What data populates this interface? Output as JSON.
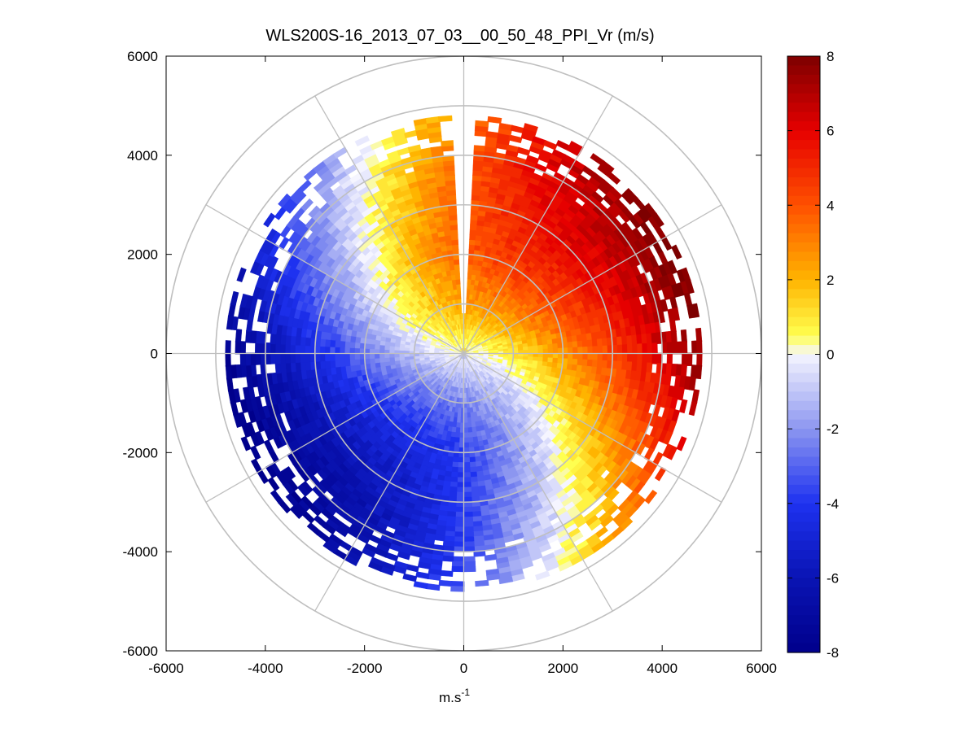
{
  "chart_data": {
    "type": "heatmap",
    "subtype": "polar-ppi",
    "title": "WLS200S-16_2013_07_03__00_50_48_PPI_Vr (m/s)",
    "xlabel_base": "m.s",
    "xlabel_sup": "-1",
    "ylabel": "",
    "xlim": [
      -6000,
      6000
    ],
    "ylim": [
      -6000,
      6000
    ],
    "xticks": [
      -6000,
      -4000,
      -2000,
      0,
      2000,
      4000,
      6000
    ],
    "yticks": [
      6000,
      4000,
      2000,
      0,
      -2000,
      -4000,
      -6000
    ],
    "xtick_labels": [
      "-6000",
      "-4000",
      "-2000",
      "0",
      "2000",
      "4000",
      "6000"
    ],
    "ytick_labels": [
      "6000",
      "4000",
      "2000",
      "0",
      "-2000",
      "-4000",
      "-6000"
    ],
    "polar_rings_m": [
      1000,
      2000,
      3000,
      4000,
      5000,
      6000
    ],
    "polar_spokes_deg": [
      0,
      30,
      60,
      90,
      120,
      150,
      180,
      210,
      240,
      270,
      300,
      330
    ],
    "max_range_m": 6000,
    "missing_sector_deg": [
      -4,
      4
    ],
    "colorbar": {
      "label": "m/s",
      "vmin": -8,
      "vmax": 8,
      "ticks": [
        8,
        6,
        4,
        2,
        0,
        -2,
        -4,
        -6,
        -8
      ],
      "tick_labels": [
        "8",
        "6",
        "4",
        "2",
        "0",
        "-2",
        "-4",
        "-6",
        "-8"
      ],
      "stops": [
        {
          "value": -8,
          "color": "#00008B"
        },
        {
          "value": -6,
          "color": "#0A14B4"
        },
        {
          "value": -4,
          "color": "#1E32F0"
        },
        {
          "value": -2,
          "color": "#8C96F0"
        },
        {
          "value": 0,
          "color": "#F5F5FF"
        },
        {
          "value": 0.5,
          "color": "#FFFF50"
        },
        {
          "value": 2,
          "color": "#FFB400"
        },
        {
          "value": 4,
          "color": "#FF5000"
        },
        {
          "value": 6,
          "color": "#E60000"
        },
        {
          "value": 8,
          "color": "#7D0000"
        }
      ]
    },
    "field": {
      "description": "radial velocity field (VAD pattern)",
      "wind_speed_profile": [
        {
          "range_m": 0,
          "speed_ms": 0
        },
        {
          "range_m": 1000,
          "speed_ms": 2.5
        },
        {
          "range_m": 2000,
          "speed_ms": 4.5
        },
        {
          "range_m": 3500,
          "speed_ms": 6.5
        },
        {
          "range_m": 5000,
          "speed_ms": 8.5
        }
      ],
      "wind_direction_profile": [
        {
          "range_m": 0,
          "deg": 190
        },
        {
          "range_m": 1500,
          "deg": 210
        },
        {
          "range_m": 3000,
          "deg": 230
        },
        {
          "range_m": 5000,
          "deg": 250
        }
      ],
      "observed_range_m": 4800
    }
  }
}
